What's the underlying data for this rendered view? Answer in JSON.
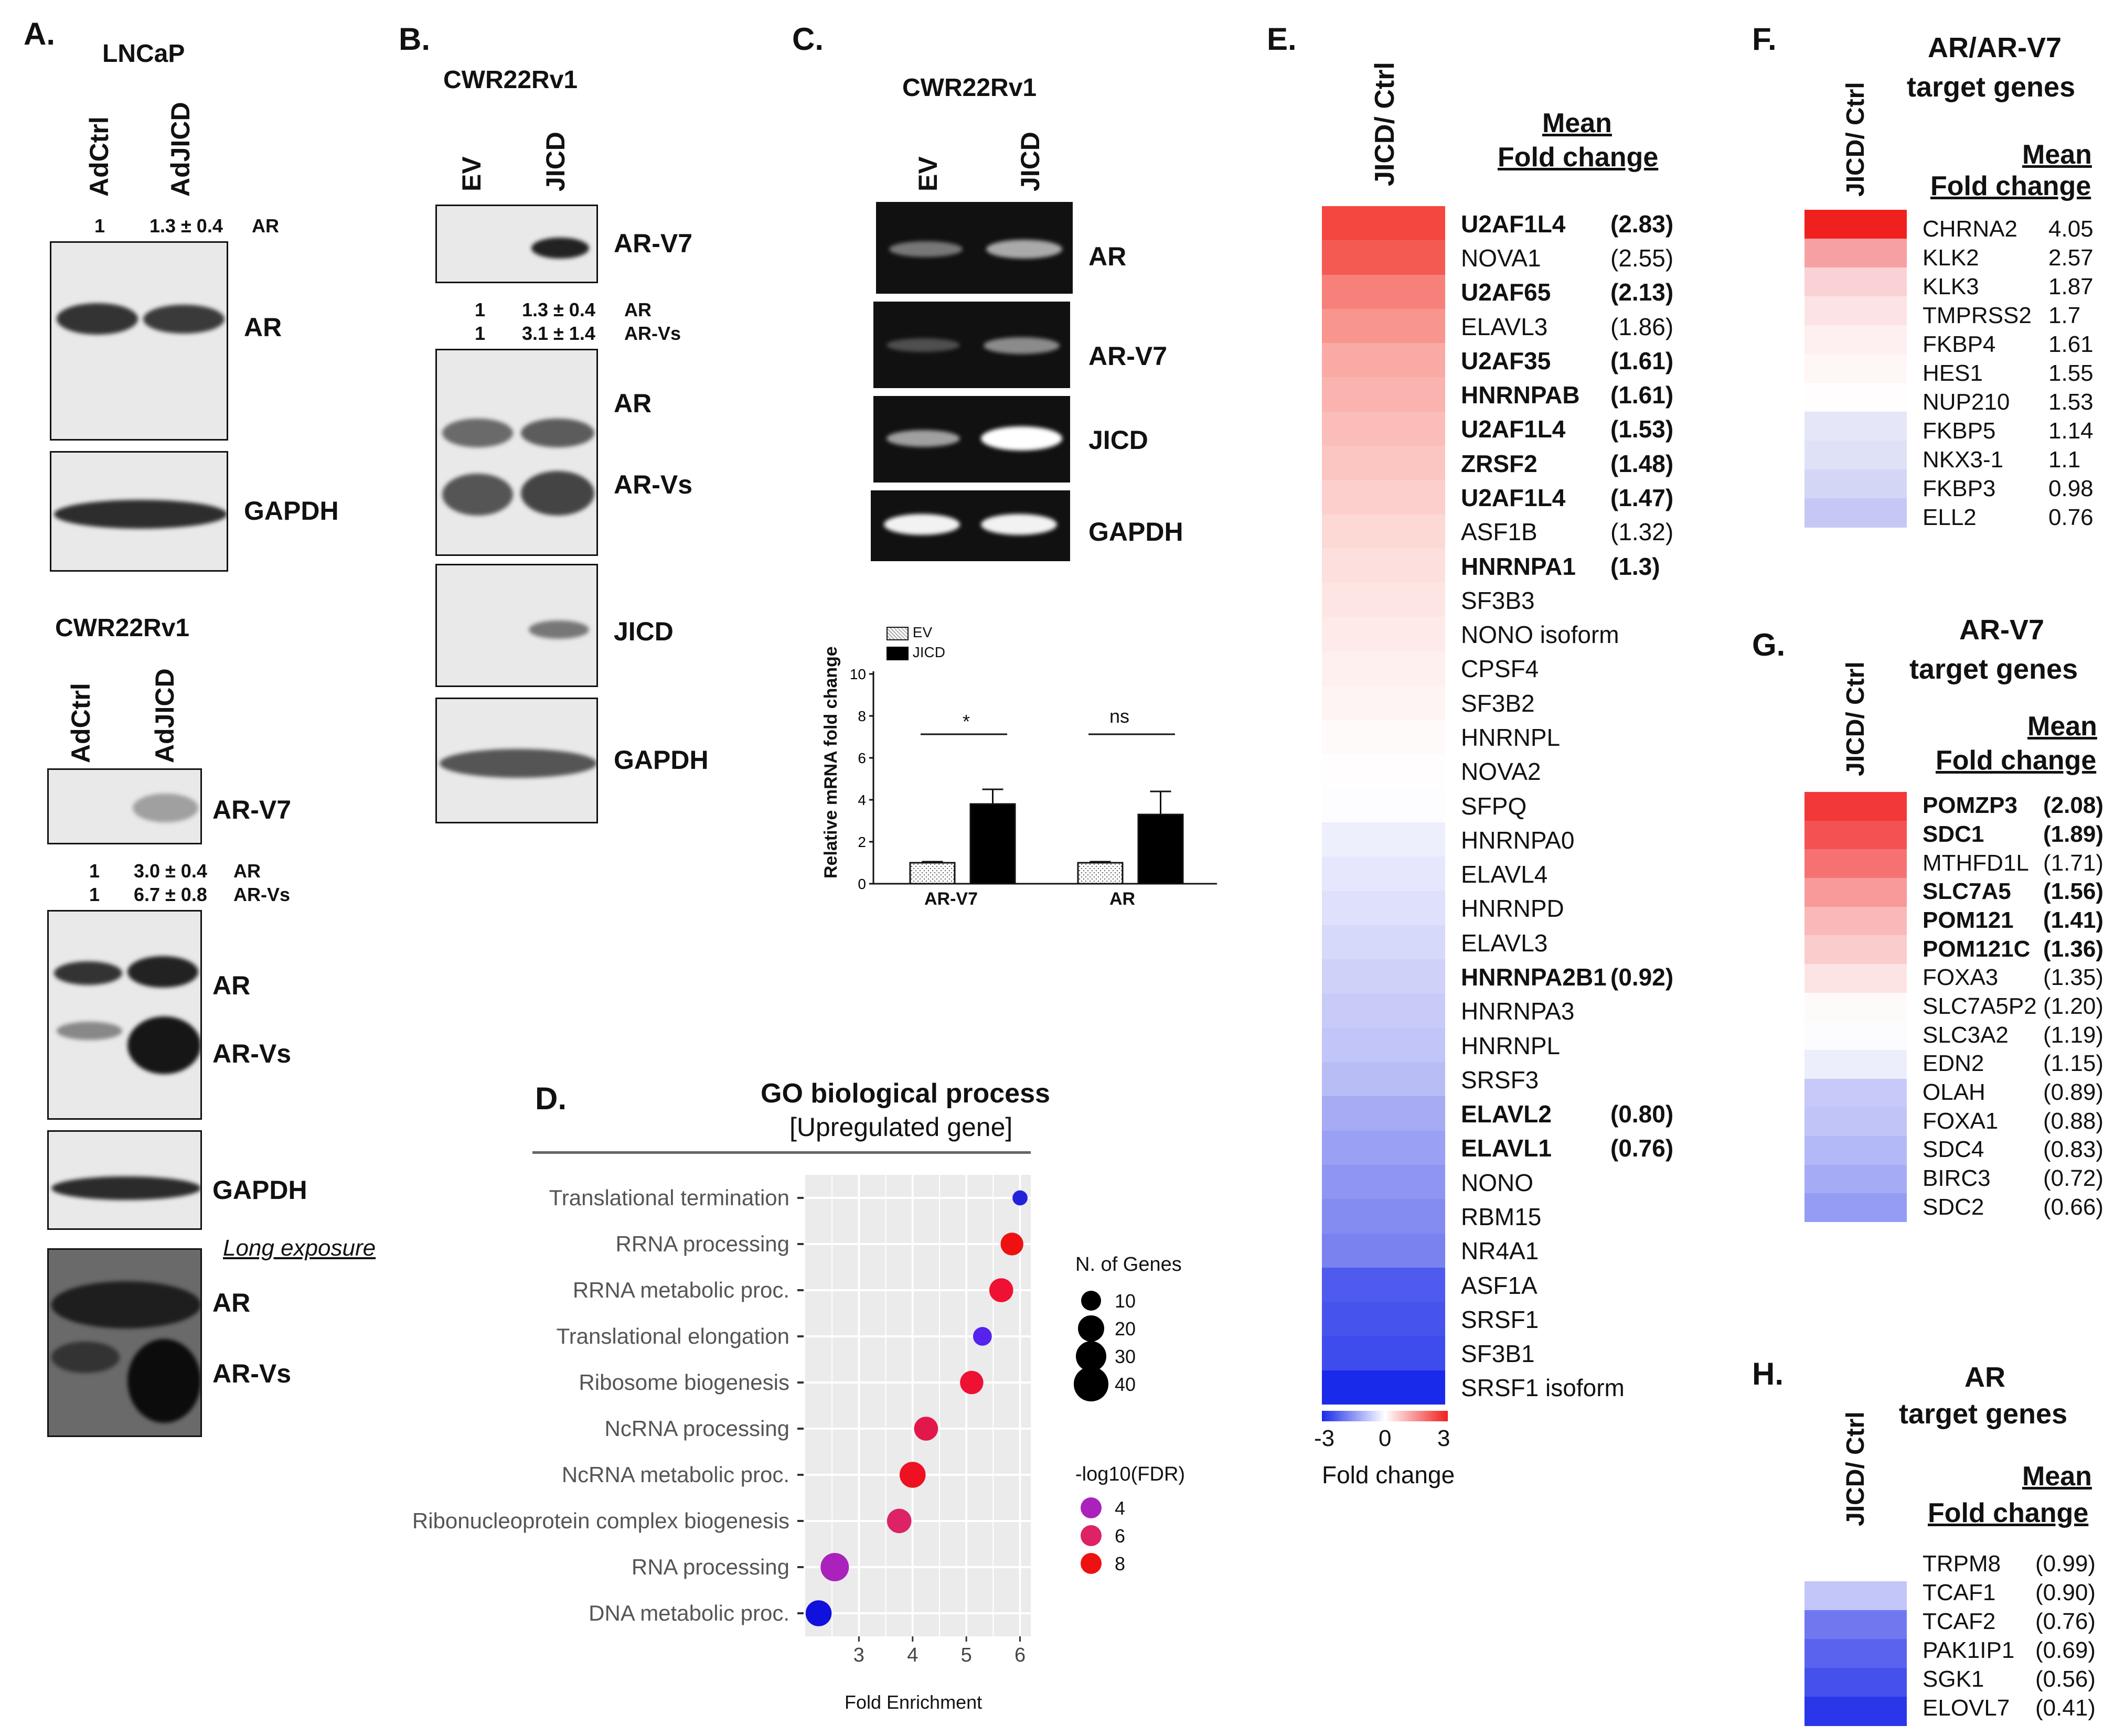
{
  "panel_labels": {
    "a": "A.",
    "b": "B.",
    "c": "C.",
    "d": "D.",
    "e": "E.",
    "f": "F.",
    "g": "G.",
    "h": "H."
  },
  "panel_a": {
    "lncap": {
      "title": "LNCaP",
      "lanes": [
        "AdCtrl",
        "AdJICD"
      ],
      "quant": {
        "v1": "1",
        "v2": "1.3 ± 0.4",
        "label": "AR"
      },
      "bands": [
        "AR",
        "GAPDH"
      ]
    },
    "cwr": {
      "title": "CWR22Rv1",
      "lanes": [
        "AdCtrl",
        "AdJICD"
      ],
      "quant": [
        {
          "v1": "1",
          "v2": "3.0 ± 0.4",
          "label": "AR"
        },
        {
          "v1": "1",
          "v2": "6.7 ± 0.8",
          "label": "AR-Vs"
        }
      ],
      "bands": [
        "AR-V7",
        "AR",
        "AR-Vs",
        "GAPDH",
        "AR",
        "AR-Vs"
      ],
      "long_exposure": "Long exposure"
    }
  },
  "panel_b": {
    "title": "CWR22Rv1",
    "lanes": [
      "EV",
      "JICD"
    ],
    "quant": [
      {
        "v1": "1",
        "v2": "1.3 ± 0.4",
        "label": "AR"
      },
      {
        "v1": "1",
        "v2": "3.1 ± 1.4",
        "label": "AR-Vs"
      }
    ],
    "bands": [
      "AR-V7",
      "AR",
      "AR-Vs",
      "JICD",
      "GAPDH"
    ]
  },
  "panel_c": {
    "title": "CWR22Rv1",
    "lanes": [
      "EV",
      "JICD"
    ],
    "gels": [
      "AR",
      "AR-V7",
      "JICD",
      "GAPDH"
    ]
  },
  "chart_data": [
    {
      "type": "bar",
      "title": "",
      "ylabel": "Relative mRNA fold change",
      "xlabel": "",
      "ylim": [
        0,
        10
      ],
      "yticks": [
        "0",
        "2",
        "4",
        "6",
        "8",
        "10"
      ],
      "categories": [
        "AR-V7",
        "AR"
      ],
      "series": [
        {
          "name": "EV",
          "values": [
            1.0,
            1.0
          ],
          "errors": [
            0.05,
            0.05
          ]
        },
        {
          "name": "JICD",
          "values": [
            3.8,
            3.3
          ],
          "errors": [
            0.7,
            1.1
          ]
        }
      ],
      "significance": [
        "*",
        "ns"
      ]
    },
    {
      "type": "scatter",
      "title": "GO biological process",
      "subtitle": "[Upregulated gene]",
      "xlabel": "Fold Enrichment",
      "xlim": [
        2,
        6.2
      ],
      "xticks": [
        "3",
        "4",
        "5",
        "6"
      ],
      "categories": [
        "Translational termination",
        "RRNA processing",
        "RRNA metabolic proc.",
        "Translational elongation",
        "Ribosome biogenesis",
        "NcRNA processing",
        "NcRNA metabolic proc.",
        "Ribonucleoprotein complex biogenesis",
        "RNA processing",
        "DNA metabolic proc."
      ],
      "x": [
        6.0,
        5.85,
        5.65,
        5.3,
        5.1,
        4.25,
        4.0,
        3.75,
        2.55,
        2.25
      ],
      "n_genes": [
        4,
        14,
        16,
        8,
        15,
        16,
        20,
        17,
        25,
        20
      ],
      "colors": [
        "#2222dd",
        "#ee1111",
        "#ee1133",
        "#5522ee",
        "#ee1133",
        "#e2184a",
        "#ee1122",
        "#dd2266",
        "#aa22bb",
        "#1111dd"
      ],
      "legend_size_title": "N. of Genes",
      "legend_sizes": [
        "10",
        "20",
        "30",
        "40"
      ],
      "legend_color_title": "-log10(FDR)",
      "legend_colors": [
        "4",
        "6",
        "8"
      ]
    }
  ],
  "panel_e": {
    "axis": "JICD/ Ctrl",
    "header1": "Mean",
    "header2": "Fold change",
    "colorbar_ticks": [
      "-3",
      "0",
      "3"
    ],
    "colorbar_label": "Fold change",
    "genes": [
      {
        "name": "U2AF1L4",
        "value": "(2.83)",
        "bold": true,
        "color": "#f4473f"
      },
      {
        "name": "NOVA1",
        "value": "(2.55)",
        "bold": false,
        "color": "#f55a52"
      },
      {
        "name": "U2AF65",
        "value": "(2.13)",
        "bold": true,
        "color": "#f7807a"
      },
      {
        "name": "ELAVL3",
        "value": "(1.86)",
        "bold": false,
        "color": "#f8958f"
      },
      {
        "name": "U2AF35",
        "value": "(1.61)",
        "bold": true,
        "color": "#f9aaa5"
      },
      {
        "name": "HNRNPAB",
        "value": "(1.61)",
        "bold": true,
        "color": "#fab3ae"
      },
      {
        "name": "U2AF1L4",
        "value": "(1.53)",
        "bold": true,
        "color": "#fbbdb9"
      },
      {
        "name": "ZRSF2",
        "value": "(1.48)",
        "bold": true,
        "color": "#fbc6c2"
      },
      {
        "name": "U2AF1L4",
        "value": "(1.47)",
        "bold": true,
        "color": "#fccfcc"
      },
      {
        "name": "ASF1B",
        "value": "(1.32)",
        "bold": false,
        "color": "#fdd9d6"
      },
      {
        "name": "HNRNPA1",
        "value": "(1.3)",
        "bold": true,
        "color": "#fde0dd"
      },
      {
        "name": "SF3B3",
        "value": "",
        "bold": false,
        "color": "#fde5e3"
      },
      {
        "name": "NONO isoform",
        "value": "",
        "bold": false,
        "color": "#feeae8"
      },
      {
        "name": "CPSF4",
        "value": "",
        "bold": false,
        "color": "#fef0ef"
      },
      {
        "name": "SF3B2",
        "value": "",
        "bold": false,
        "color": "#fef4f3"
      },
      {
        "name": "HNRNPL",
        "value": "",
        "bold": false,
        "color": "#fffafa"
      },
      {
        "name": "NOVA2",
        "value": "",
        "bold": false,
        "color": "#fffdfd"
      },
      {
        "name": "SFPQ",
        "value": "",
        "bold": false,
        "color": "#fdfdff"
      },
      {
        "name": "HNRNPA0",
        "value": "",
        "bold": false,
        "color": "#eeeffd"
      },
      {
        "name": "ELAVL4",
        "value": "",
        "bold": false,
        "color": "#e6e7fc"
      },
      {
        "name": "HNRNPD",
        "value": "",
        "bold": false,
        "color": "#dfe0fb"
      },
      {
        "name": "ELAVL3",
        "value": "",
        "bold": false,
        "color": "#d7d9fa"
      },
      {
        "name": "HNRNPA2B1",
        "value": "(0.92)",
        "bold": true,
        "color": "#cfd1f9"
      },
      {
        "name": "HNRNPA3",
        "value": "",
        "bold": false,
        "color": "#c8cbf8"
      },
      {
        "name": "HNRNPL",
        "value": "",
        "bold": false,
        "color": "#c2c5f7"
      },
      {
        "name": "SRSF3",
        "value": "",
        "bold": false,
        "color": "#b9bdf6"
      },
      {
        "name": "ELAVL2",
        "value": "(0.80)",
        "bold": true,
        "color": "#a6abf4"
      },
      {
        "name": "ELAVL1",
        "value": "(0.76)",
        "bold": true,
        "color": "#9aa0f3"
      },
      {
        "name": "NONO",
        "value": "",
        "bold": false,
        "color": "#8f95f2"
      },
      {
        "name": "RBM15",
        "value": "",
        "bold": false,
        "color": "#858cf1"
      },
      {
        "name": "NR4A1",
        "value": "",
        "bold": false,
        "color": "#7a82f0"
      },
      {
        "name": "ASF1A",
        "value": "",
        "bold": false,
        "color": "#4f5aee"
      },
      {
        "name": "SRSF1",
        "value": "",
        "bold": false,
        "color": "#4753ed"
      },
      {
        "name": "SF3B1",
        "value": "",
        "bold": false,
        "color": "#3f4ced"
      },
      {
        "name": "SRSF1 isoform",
        "value": "",
        "bold": false,
        "color": "#1a2aeb"
      }
    ]
  },
  "panel_f": {
    "title1": "AR/AR-V7",
    "title2": "target genes",
    "axis": "JICD/ Ctrl",
    "header1": "Mean",
    "header2": "Fold change",
    "genes": [
      {
        "name": "CHRNA2",
        "value": "4.05",
        "bold": false,
        "color": "#f0201f"
      },
      {
        "name": "KLK2",
        "value": "2.57",
        "bold": false,
        "color": "#f7a0a3"
      },
      {
        "name": "KLK3",
        "value": "1.87",
        "bold": false,
        "color": "#fad2d5"
      },
      {
        "name": "TMPRSS2",
        "value": "1.7",
        "bold": false,
        "color": "#fce3e5"
      },
      {
        "name": "FKBP4",
        "value": "1.61",
        "bold": false,
        "color": "#feeff0"
      },
      {
        "name": "HES1",
        "value": "1.55",
        "bold": false,
        "color": "#fff6f6"
      },
      {
        "name": "NUP210",
        "value": "1.53",
        "bold": false,
        "color": "#fffdfd"
      },
      {
        "name": "FKBP5",
        "value": "1.14",
        "bold": false,
        "color": "#e5e6f8"
      },
      {
        "name": "NKX3-1",
        "value": "1.1",
        "bold": false,
        "color": "#dfe1f7"
      },
      {
        "name": "FKBP3",
        "value": "0.98",
        "bold": false,
        "color": "#d4d6f6"
      },
      {
        "name": "ELL2",
        "value": "0.76",
        "bold": false,
        "color": "#c5c8f4"
      }
    ]
  },
  "panel_g": {
    "title1": "AR-V7",
    "title2": "target genes",
    "axis": "JICD/ Ctrl",
    "header1": "Mean",
    "header2": "Fold change",
    "genes": [
      {
        "name": "POMZP3",
        "value": "(2.08)",
        "bold": true,
        "color": "#f33838"
      },
      {
        "name": "SDC1",
        "value": "(1.89)",
        "bold": true,
        "color": "#f45252"
      },
      {
        "name": "MTHFD1L",
        "value": "(1.71)",
        "bold": false,
        "color": "#f67272"
      },
      {
        "name": "SLC7A5",
        "value": "(1.56)",
        "bold": true,
        "color": "#f89a9a"
      },
      {
        "name": "POM121",
        "value": "(1.41)",
        "bold": true,
        "color": "#fab8b8"
      },
      {
        "name": "POM121C",
        "value": "(1.36)",
        "bold": true,
        "color": "#fbcccc"
      },
      {
        "name": "FOXA3",
        "value": "(1.35)",
        "bold": false,
        "color": "#fde4e4"
      },
      {
        "name": "SLC7A5P2",
        "value": "(1.20)",
        "bold": false,
        "color": "#fffafa"
      },
      {
        "name": "SLC3A2",
        "value": "(1.19)",
        "bold": false,
        "color": "#fcfcff"
      },
      {
        "name": "EDN2",
        "value": "(1.15)",
        "bold": false,
        "color": "#eceefc"
      },
      {
        "name": "OLAH",
        "value": "(0.89)",
        "bold": false,
        "color": "#c7caf8"
      },
      {
        "name": "FOXA1",
        "value": "(0.88)",
        "bold": false,
        "color": "#c0c4f7"
      },
      {
        "name": "SDC4",
        "value": "(0.83)",
        "bold": false,
        "color": "#b3b8f6"
      },
      {
        "name": "BIRC3",
        "value": "(0.72)",
        "bold": false,
        "color": "#a5abf5"
      },
      {
        "name": "SDC2",
        "value": "(0.66)",
        "bold": false,
        "color": "#959cf3"
      }
    ]
  },
  "panel_h": {
    "title1": "AR",
    "title2": "target genes",
    "axis": "JICD/ Ctrl",
    "header1": "Mean",
    "header2": "Fold change",
    "genes": [
      {
        "name": "TRPM8",
        "value": "(0.99)",
        "bold": false,
        "color": "#ffffff"
      },
      {
        "name": "TCAF1",
        "value": "(0.90)",
        "bold": false,
        "color": "#c2c6f8"
      },
      {
        "name": "TCAF2",
        "value": "(0.76)",
        "bold": false,
        "color": "#7178ef"
      },
      {
        "name": "PAK1IP1",
        "value": "(0.69)",
        "bold": false,
        "color": "#5a63ee"
      },
      {
        "name": "SGK1",
        "value": "(0.56)",
        "bold": false,
        "color": "#4650ec"
      },
      {
        "name": "ELOVL7",
        "value": "(0.41)",
        "bold": false,
        "color": "#2a36ea"
      }
    ]
  }
}
